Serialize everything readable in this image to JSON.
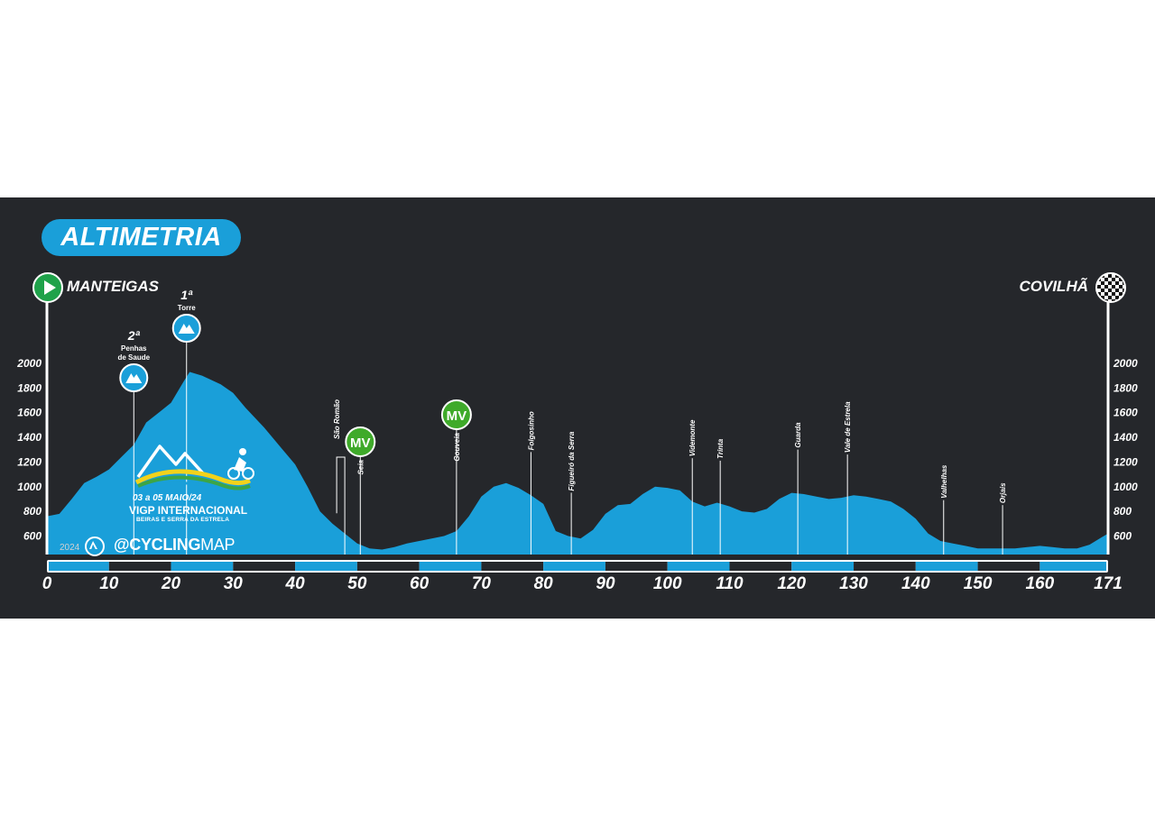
{
  "header": {
    "title": "ALTIMETRIA",
    "start_town": "MANTEIGAS",
    "finish_town": "COVILHÃ"
  },
  "race_logo": {
    "dates": "03 a 05 MAIO/24",
    "edition_line": "VIGP INTERNACIONAL",
    "subtitle": "BEIRAS E SERRA DA ESTRELA"
  },
  "credit": {
    "year": "2024",
    "brand_prefix": "@CYCLING",
    "brand_suffix": "MAP"
  },
  "colors": {
    "background": "#25272b",
    "profile_fill": "#1a9fd9",
    "mountain_marker": "#1a9fd9",
    "sprint_marker": "#3faa2a",
    "start_marker": "#1fa24a",
    "text": "#ffffff"
  },
  "icons": {
    "start": "play-icon",
    "finish": "checkered-flag-icon",
    "climb": "mountain-icon",
    "sprint": "MV"
  },
  "chart_data": {
    "type": "area",
    "xlabel": "",
    "ylabel": "",
    "xlim": [
      0,
      171
    ],
    "ylim": [
      440,
      2250
    ],
    "xticks": [
      0,
      10,
      20,
      30,
      40,
      50,
      60,
      70,
      80,
      90,
      100,
      110,
      120,
      130,
      140,
      150,
      160,
      171
    ],
    "yticks": [
      600,
      800,
      1000,
      1200,
      1400,
      1600,
      1800,
      2000
    ],
    "grid": false,
    "series": [
      {
        "x": [
          0,
          2,
          4,
          6,
          8,
          10,
          12,
          14,
          16,
          18,
          20,
          22,
          23,
          25,
          28,
          30,
          32,
          35,
          38,
          40,
          42,
          44,
          46,
          48,
          50,
          52,
          54,
          56,
          58,
          60,
          62,
          64,
          66,
          68,
          70,
          72,
          74,
          76,
          78,
          80,
          82,
          84,
          86,
          88,
          90,
          92,
          94,
          96,
          98,
          100,
          102,
          104,
          106,
          108,
          110,
          112,
          114,
          116,
          118,
          120,
          122,
          124,
          126,
          128,
          130,
          132,
          134,
          136,
          138,
          140,
          142,
          144,
          146,
          148,
          150,
          152,
          154,
          156,
          158,
          160,
          162,
          164,
          166,
          168,
          170,
          171
        ],
        "y": [
          760,
          780,
          900,
          1030,
          1080,
          1140,
          1240,
          1340,
          1520,
          1600,
          1680,
          1850,
          1930,
          1900,
          1830,
          1760,
          1640,
          1480,
          1300,
          1180,
          1000,
          800,
          700,
          620,
          540,
          500,
          490,
          510,
          540,
          560,
          580,
          600,
          640,
          760,
          920,
          1000,
          1030,
          990,
          930,
          860,
          640,
          600,
          580,
          650,
          780,
          850,
          860,
          940,
          1000,
          990,
          970,
          880,
          840,
          870,
          840,
          800,
          790,
          820,
          900,
          950,
          940,
          920,
          900,
          910,
          930,
          920,
          900,
          880,
          820,
          740,
          620,
          560,
          540,
          520,
          500,
          500,
          500,
          500,
          510,
          520,
          510,
          500,
          500,
          530,
          590,
          620
        ]
      }
    ],
    "annotations": [
      {
        "km": 14,
        "name": "Penhas de Saude",
        "type": "climb",
        "category": "2ª",
        "elevation": 1530
      },
      {
        "km": 22.5,
        "name": "Torre",
        "type": "climb",
        "category": "1ª",
        "elevation": 1930
      },
      {
        "km": 48,
        "name": "São Romão",
        "type": "town",
        "elevation": 580
      },
      {
        "km": 50.5,
        "name": "Seia",
        "type": "sprint",
        "category": "MV",
        "elevation": 540
      },
      {
        "km": 66,
        "name": "Gouveia",
        "type": "sprint",
        "category": "MV",
        "elevation": 640
      },
      {
        "km": 78,
        "name": "Folgosinho",
        "type": "town",
        "elevation": 930
      },
      {
        "km": 84.5,
        "name": "Figueiró da Serra",
        "type": "town",
        "elevation": 600
      },
      {
        "km": 104,
        "name": "Videmonte",
        "type": "town",
        "elevation": 880
      },
      {
        "km": 108.5,
        "name": "Trinta",
        "type": "town",
        "elevation": 860
      },
      {
        "km": 121,
        "name": "Guarda",
        "type": "town",
        "elevation": 950
      },
      {
        "km": 129,
        "name": "Vale de Estrela",
        "type": "town",
        "elevation": 910
      },
      {
        "km": 144.5,
        "name": "Valhelhas",
        "type": "town",
        "elevation": 540
      },
      {
        "km": 154,
        "name": "Orjais",
        "type": "town",
        "elevation": 500
      }
    ]
  }
}
